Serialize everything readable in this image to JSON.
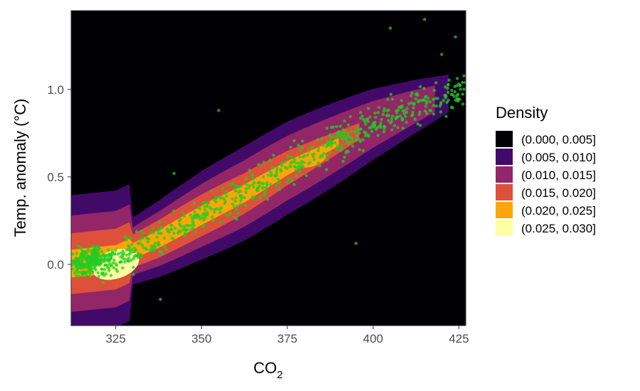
{
  "chart_data": {
    "type": "heatmap",
    "subtype": "filled-density-contour-with-scatter",
    "xlabel": "CO",
    "xlabel_subscript": "2",
    "ylabel": "Temp. anomaly (°C)",
    "xlim": [
      312,
      427
    ],
    "ylim": [
      -0.35,
      1.45
    ],
    "x_ticks": [
      325,
      350,
      375,
      400,
      425
    ],
    "x_tick_labels": [
      "325",
      "350",
      "375",
      "400",
      "425"
    ],
    "y_ticks": [
      0.0,
      0.5,
      1.0
    ],
    "y_tick_labels": [
      "0.0",
      "0.5",
      "1.0"
    ],
    "grid": false,
    "legend": {
      "title": "Density",
      "placement": "right",
      "entries": [
        {
          "label": "(0.000, 0.005]",
          "color": "#000004"
        },
        {
          "label": "(0.005, 0.010]",
          "color": "#420a68"
        },
        {
          "label": "(0.010, 0.015]",
          "color": "#932667"
        },
        {
          "label": "(0.015, 0.020]",
          "color": "#dd513a"
        },
        {
          "label": "(0.020, 0.025]",
          "color": "#fca50a"
        },
        {
          "label": "(0.025, 0.030]",
          "color": "#fcffa4"
        }
      ]
    },
    "point_color": "#22cc22",
    "density_centerline": [
      [
        310,
        0.0
      ],
      [
        325,
        0.03
      ],
      [
        338,
        0.15
      ],
      [
        350,
        0.28
      ],
      [
        362,
        0.4
      ],
      [
        375,
        0.55
      ],
      [
        388,
        0.68
      ],
      [
        400,
        0.8
      ],
      [
        412,
        0.9
      ],
      [
        425,
        1.0
      ]
    ],
    "density_peaks": [
      {
        "x": 325,
        "y": 0.0,
        "level": 0.028
      },
      {
        "x": 355,
        "y": 0.34,
        "level": 0.021
      },
      {
        "x": 382,
        "y": 0.6,
        "level": 0.02
      }
    ],
    "scatter_sample": [
      [
        319,
        0.05
      ],
      [
        321,
        -0.05
      ],
      [
        323,
        0.02
      ],
      [
        325,
        0.08
      ],
      [
        327,
        -0.02
      ],
      [
        329,
        0.1
      ],
      [
        332,
        0.12
      ],
      [
        336,
        0.18
      ],
      [
        340,
        0.2
      ],
      [
        344,
        0.22
      ],
      [
        348,
        0.3
      ],
      [
        352,
        0.35
      ],
      [
        356,
        0.38
      ],
      [
        360,
        0.42
      ],
      [
        364,
        0.45
      ],
      [
        368,
        0.5
      ],
      [
        372,
        0.55
      ],
      [
        376,
        0.58
      ],
      [
        380,
        0.62
      ],
      [
        384,
        0.65
      ],
      [
        388,
        0.7
      ],
      [
        392,
        0.72
      ],
      [
        396,
        0.75
      ],
      [
        400,
        0.8
      ],
      [
        404,
        0.85
      ],
      [
        408,
        0.9
      ],
      [
        412,
        0.92
      ],
      [
        416,
        0.95
      ],
      [
        420,
        1.2
      ],
      [
        424,
        1.3
      ],
      [
        355,
        0.88
      ],
      [
        342,
        0.52
      ],
      [
        395,
        0.12
      ],
      [
        338,
        -0.2
      ],
      [
        405,
        1.35
      ],
      [
        415,
        1.4
      ]
    ]
  }
}
